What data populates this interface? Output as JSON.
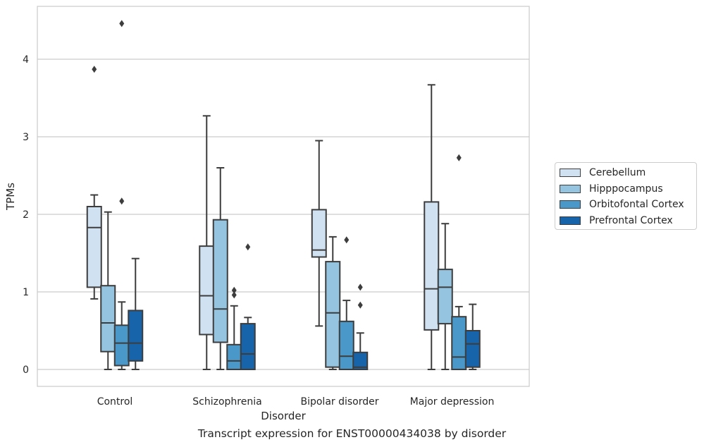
{
  "chart_data": {
    "type": "boxplot",
    "caption": "Transcript expression for ENST00000434038 by disorder",
    "xlabel": "Disorder",
    "ylabel": "TPMs",
    "ylim": [
      -0.22,
      4.7
    ],
    "yticks": [
      0,
      1,
      2,
      3,
      4
    ],
    "categories": [
      "Control",
      "Schizophrenia",
      "Bipolar disorder",
      "Major depression"
    ],
    "grid": "horizontal",
    "legend_position": "right",
    "series": [
      {
        "name": "Cerebellum",
        "color": "#d0e1f2",
        "boxes": [
          {
            "whislo": 0.91,
            "q1": 1.06,
            "med": 1.83,
            "q3": 2.1,
            "whishi": 2.25,
            "fliers": [
              3.87
            ]
          },
          {
            "whislo": 0.0,
            "q1": 0.45,
            "med": 0.95,
            "q3": 1.59,
            "whishi": 3.27,
            "fliers": []
          },
          {
            "whislo": 0.56,
            "q1": 1.45,
            "med": 1.54,
            "q3": 2.06,
            "whishi": 2.95,
            "fliers": []
          },
          {
            "whislo": 0.0,
            "q1": 0.51,
            "med": 1.04,
            "q3": 2.16,
            "whishi": 3.67,
            "fliers": []
          }
        ]
      },
      {
        "name": "Hipppocampus",
        "color": "#94c4df",
        "boxes": [
          {
            "whislo": 0.0,
            "q1": 0.23,
            "med": 0.6,
            "q3": 1.08,
            "whishi": 2.03,
            "fliers": []
          },
          {
            "whislo": 0.0,
            "q1": 0.35,
            "med": 0.78,
            "q3": 1.93,
            "whishi": 2.6,
            "fliers": []
          },
          {
            "whislo": 0.0,
            "q1": 0.03,
            "med": 0.73,
            "q3": 1.39,
            "whishi": 1.71,
            "fliers": []
          },
          {
            "whislo": 0.0,
            "q1": 0.59,
            "med": 1.06,
            "q3": 1.29,
            "whishi": 1.88,
            "fliers": []
          }
        ]
      },
      {
        "name": "Orbitofontal Cortex",
        "color": "#4a98c9",
        "boxes": [
          {
            "whislo": 0.0,
            "q1": 0.05,
            "med": 0.34,
            "q3": 0.57,
            "whishi": 0.87,
            "fliers": [
              2.17,
              4.46
            ]
          },
          {
            "whislo": 0.0,
            "q1": 0.0,
            "med": 0.11,
            "q3": 0.32,
            "whishi": 0.82,
            "fliers": [
              0.96,
              1.02
            ]
          },
          {
            "whislo": 0.0,
            "q1": 0.0,
            "med": 0.17,
            "q3": 0.62,
            "whishi": 0.89,
            "fliers": [
              1.67
            ]
          },
          {
            "whislo": 0.0,
            "q1": 0.0,
            "med": 0.16,
            "q3": 0.68,
            "whishi": 0.81,
            "fliers": [
              2.73
            ]
          }
        ]
      },
      {
        "name": "Prefrontal Cortex",
        "color": "#1764ab",
        "boxes": [
          {
            "whislo": 0.0,
            "q1": 0.11,
            "med": 0.34,
            "q3": 0.76,
            "whishi": 1.43,
            "fliers": []
          },
          {
            "whislo": 0.0,
            "q1": 0.0,
            "med": 0.2,
            "q3": 0.59,
            "whishi": 0.67,
            "fliers": [
              1.58
            ]
          },
          {
            "whislo": 0.0,
            "q1": 0.0,
            "med": 0.03,
            "q3": 0.22,
            "whishi": 0.47,
            "fliers": [
              0.83,
              1.06
            ]
          },
          {
            "whislo": 0.0,
            "q1": 0.03,
            "med": 0.33,
            "q3": 0.5,
            "whishi": 0.84,
            "fliers": []
          }
        ]
      }
    ]
  }
}
